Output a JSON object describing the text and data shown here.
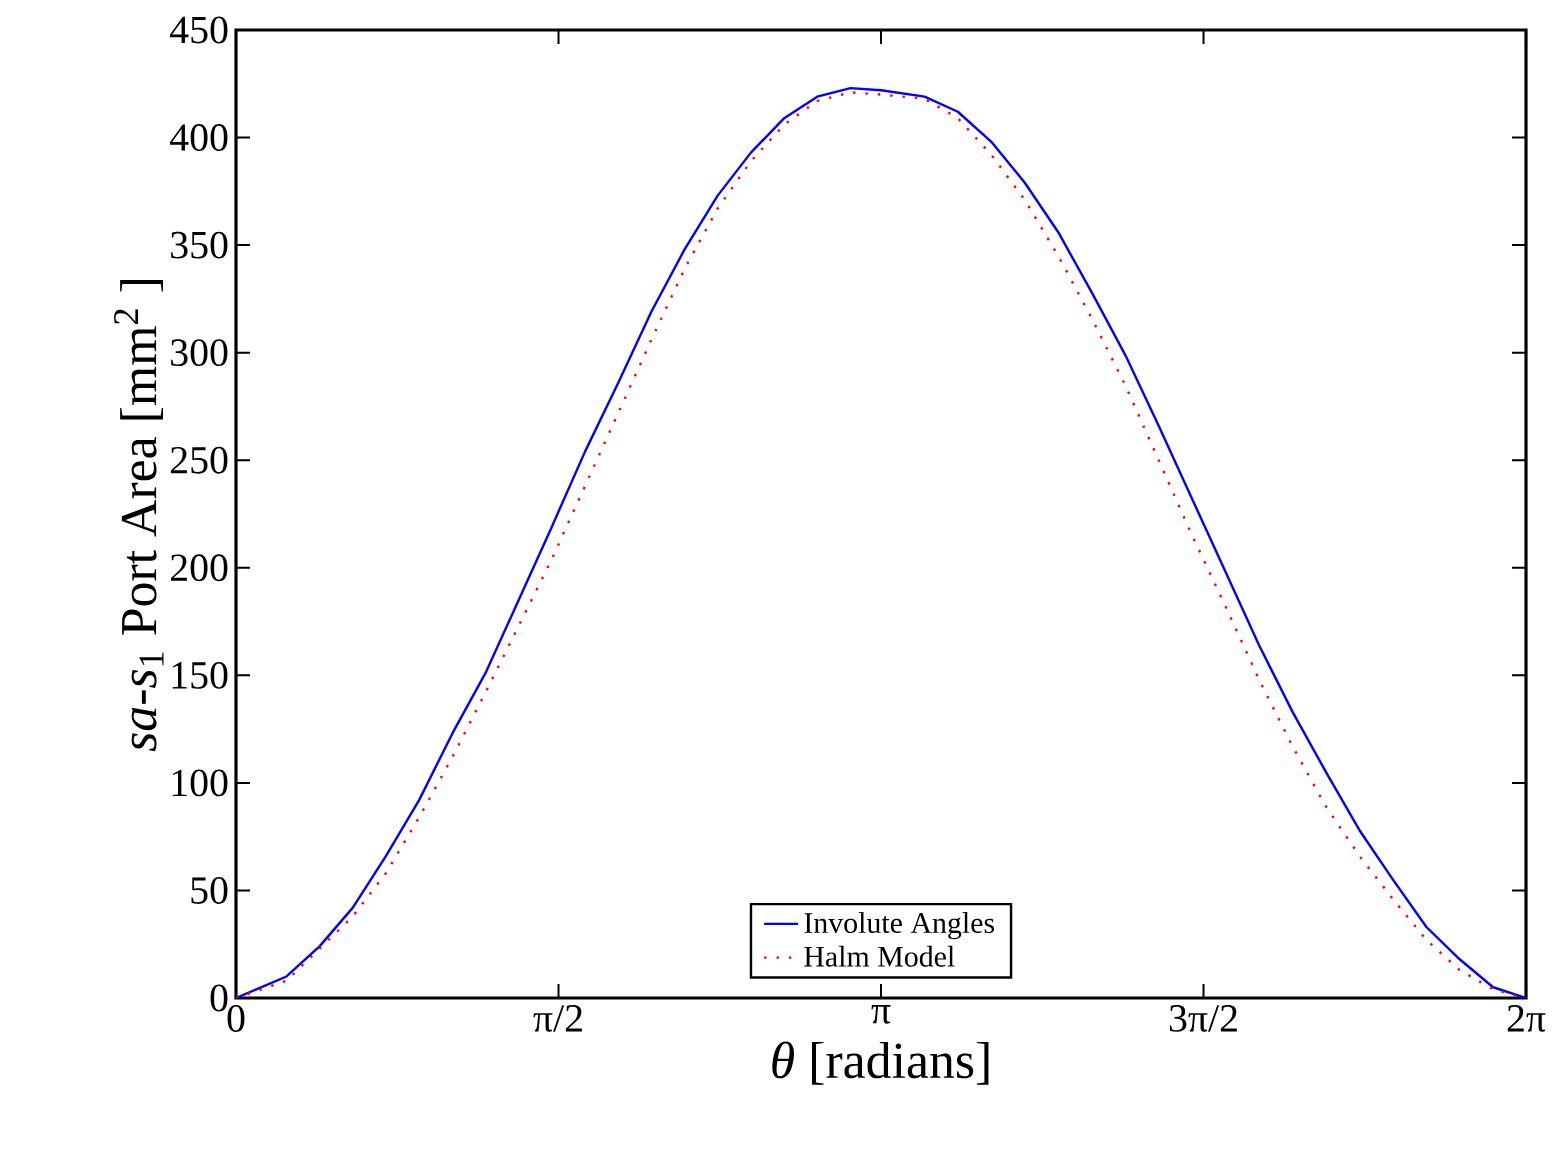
{
  "chart_data": {
    "type": "line",
    "xlabel": "*θ* [radians]",
    "ylabel": "*sa*-*s*$_{1}$ Port Area [mm$^{2}$ ]",
    "xlim": [
      0,
      6.2832
    ],
    "ylim": [
      0,
      450
    ],
    "xticks": [
      {
        "value": 0,
        "label": "0"
      },
      {
        "value": 1.5708,
        "label": "π/2"
      },
      {
        "value": 3.1416,
        "label": "π"
      },
      {
        "value": 4.7124,
        "label": "3π/2"
      },
      {
        "value": 6.2832,
        "label": "2π"
      }
    ],
    "yticks": [
      0,
      50,
      100,
      150,
      200,
      250,
      300,
      350,
      400,
      450
    ],
    "grid": false,
    "legend": "bottom",
    "series": [
      {
        "name": "Involute Angles",
        "color": "#0000ff",
        "line_style": "solid",
        "x": [
          0,
          0.246,
          0.407,
          0.569,
          0.73,
          0.892,
          1.054,
          1.215,
          1.377,
          1.538,
          1.7,
          1.862,
          2.023,
          2.185,
          2.346,
          2.508,
          2.67,
          2.831,
          2.993,
          3.1416,
          3.354,
          3.516,
          3.679,
          3.842,
          4.005,
          4.168,
          4.331,
          4.494,
          4.657,
          4.82,
          4.983,
          5.146,
          5.309,
          5.472,
          5.635,
          5.798,
          5.96,
          6.123,
          6.2832
        ],
        "values": [
          0,
          10,
          24,
          42,
          66,
          92,
          123,
          151,
          185,
          219,
          254,
          286,
          319,
          348,
          373,
          393,
          409,
          419,
          423,
          422,
          419,
          412,
          398,
          379,
          356,
          328,
          299,
          266,
          232,
          198,
          164,
          133,
          105,
          78,
          55,
          33,
          18,
          5,
          0
        ]
      },
      {
        "name": "Halm Model",
        "color": "#ff0000",
        "line_style": "dotted",
        "x": [
          0,
          0.246,
          0.569,
          0.73,
          0.892,
          1.054,
          1.215,
          1.377,
          1.538,
          1.7,
          1.862,
          2.023,
          2.185,
          2.346,
          2.508,
          2.67,
          2.831,
          2.993,
          3.1416,
          3.354,
          3.516,
          3.679,
          3.842,
          4.005,
          4.168,
          4.331,
          4.494,
          4.657,
          4.82,
          4.983,
          5.146,
          5.309,
          5.472,
          5.635,
          5.798,
          5.96,
          6.123,
          6.2832
        ],
        "values": [
          0,
          8,
          38,
          58,
          84,
          112,
          142,
          173,
          204,
          238,
          272,
          306,
          339,
          367,
          389,
          406,
          417,
          421,
          420,
          418,
          409,
          392,
          371,
          345,
          316,
          285,
          250,
          215,
          182,
          148,
          117,
          89,
          66,
          46,
          27,
          13,
          4,
          0
        ]
      }
    ]
  }
}
